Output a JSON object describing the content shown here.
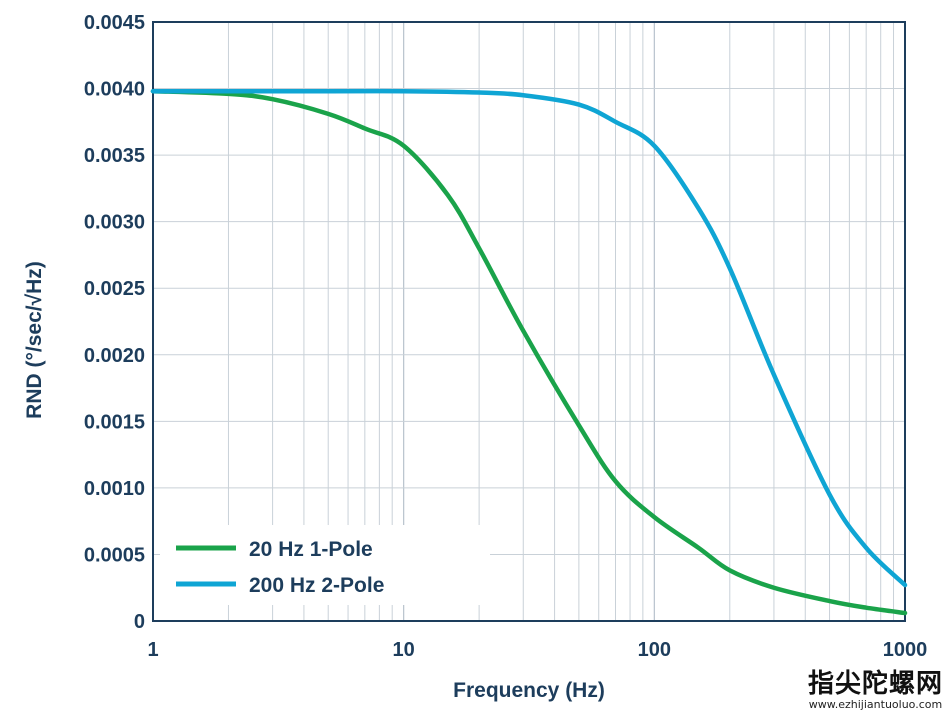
{
  "chart_data": {
    "type": "line",
    "xlabel": "Frequency (Hz)",
    "ylabel": "RND (°/sec/√Hz)",
    "x_scale": "log",
    "xlim": [
      1,
      1000
    ],
    "ylim": [
      0,
      0.0045
    ],
    "x_ticks": [
      1,
      10,
      100,
      1000
    ],
    "x_tick_labels": [
      "1",
      "10",
      "100",
      "1000"
    ],
    "y_ticks": [
      0,
      0.0005,
      0.001,
      0.0015,
      0.002,
      0.0025,
      0.003,
      0.0035,
      0.004,
      0.0045
    ],
    "y_tick_labels": [
      "0",
      "0.0005",
      "0.0010",
      "0.0015",
      "0.0020",
      "0.0025",
      "0.0030",
      "0.0035",
      "0.0040",
      "0.0045"
    ],
    "grid": true,
    "legend_position": "bottom-left",
    "series": [
      {
        "name": "20 Hz 1-Pole",
        "color": "#1aa34a",
        "x": [
          1,
          2,
          3,
          5,
          7,
          10,
          15,
          20,
          30,
          50,
          70,
          100,
          150,
          200,
          300,
          500,
          700,
          1000
        ],
        "y": [
          0.00398,
          0.00396,
          0.00392,
          0.00381,
          0.0037,
          0.00357,
          0.0032,
          0.0028,
          0.00218,
          0.00147,
          0.00105,
          0.00078,
          0.00055,
          0.00038,
          0.00025,
          0.00015,
          0.0001,
          6e-05
        ]
      },
      {
        "name": "200 Hz 2-Pole",
        "color": "#0fa5d4",
        "x": [
          1,
          5,
          10,
          20,
          30,
          50,
          70,
          100,
          150,
          200,
          300,
          500,
          700,
          1000
        ],
        "y": [
          0.00398,
          0.00398,
          0.00398,
          0.00397,
          0.00395,
          0.00388,
          0.00375,
          0.00357,
          0.0031,
          0.00265,
          0.00185,
          0.00095,
          0.00055,
          0.00027
        ]
      }
    ]
  },
  "watermark": {
    "text": "指尖陀螺网",
    "url": "www.ezhijiantuoluo.com"
  }
}
